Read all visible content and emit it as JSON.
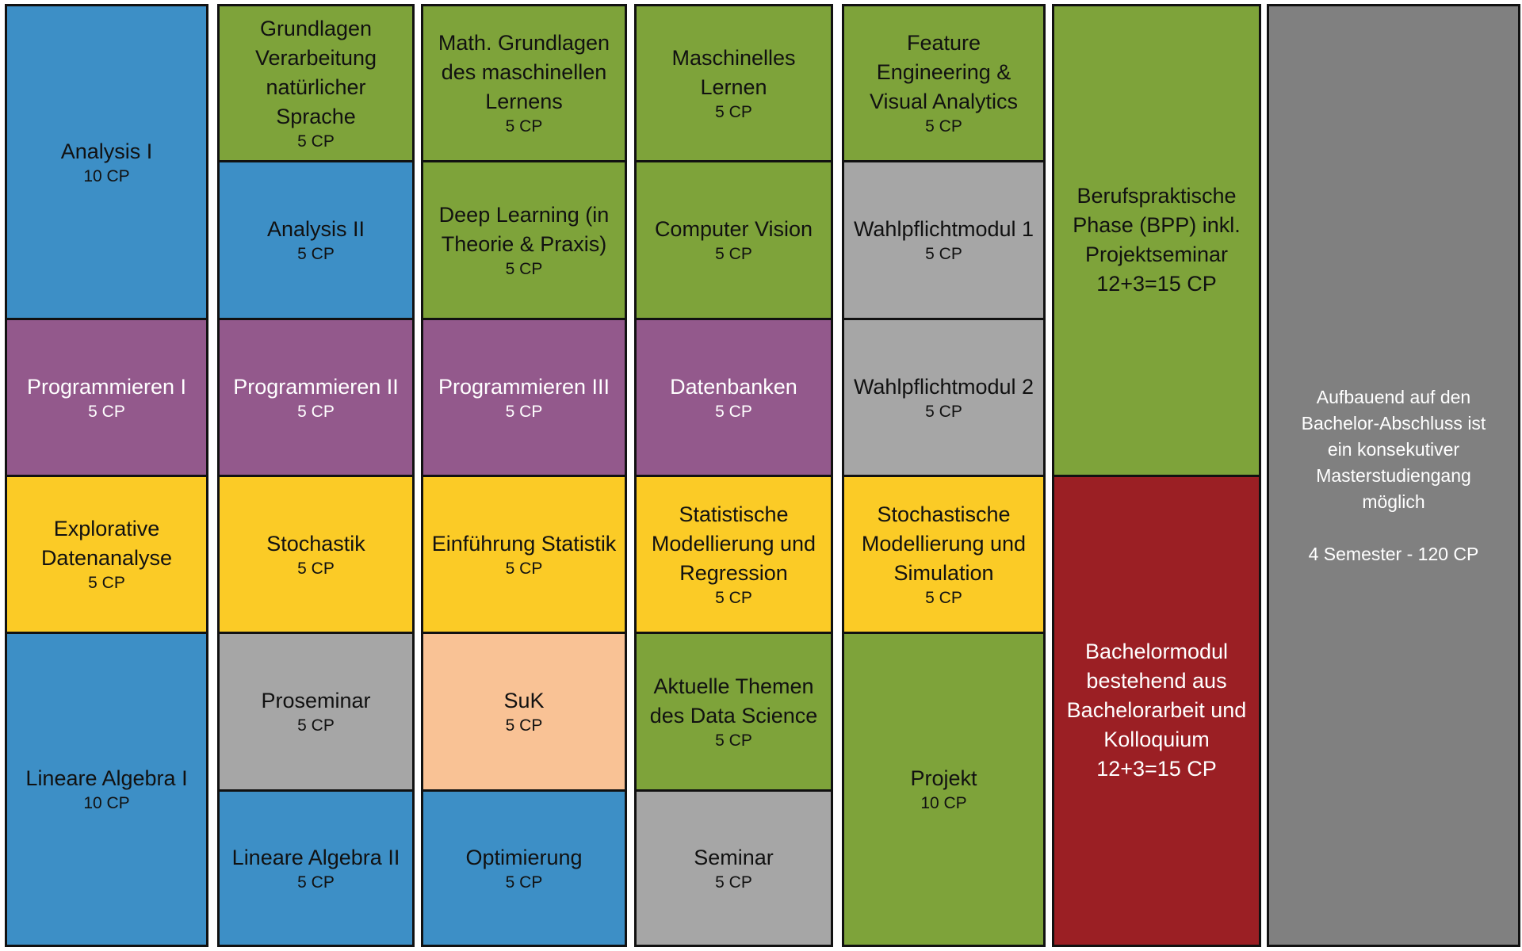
{
  "columns": [
    {
      "modules": [
        {
          "title": "Analysis I",
          "credits": "10 CP",
          "color": "#3d8fc6"
        },
        {
          "title": "Programmieren I",
          "credits": "5 CP",
          "color": "#93598c"
        },
        {
          "title": "Explorative Datenanalyse",
          "credits": "5 CP",
          "color": "#fbcb26"
        },
        {
          "title": "Lineare Algebra I",
          "credits": "10 CP",
          "color": "#3d8fc6"
        }
      ]
    },
    {
      "modules": [
        {
          "title": "Grundlagen Verarbeitung natürlicher Sprache",
          "credits": "5 CP",
          "color": "#7ea33a"
        },
        {
          "title": "Analysis II",
          "credits": "5 CP",
          "color": "#3d8fc6"
        },
        {
          "title": "Programmieren II",
          "credits": "5 CP",
          "color": "#93598c"
        },
        {
          "title": "Stochastik",
          "credits": "5 CP",
          "color": "#fbcb26"
        },
        {
          "title": "Proseminar",
          "credits": "5 CP",
          "color": "#a6a6a6"
        },
        {
          "title": "Lineare Algebra II",
          "credits": "5 CP",
          "color": "#3d8fc6"
        }
      ]
    },
    {
      "modules": [
        {
          "title": "Math. Grundlagen des maschinellen Lernens",
          "credits": "5 CP",
          "color": "#7ea33a"
        },
        {
          "title": "Deep Learning (in Theorie & Praxis)",
          "credits": "5 CP",
          "color": "#7ea33a"
        },
        {
          "title": "Programmieren III",
          "credits": "5 CP",
          "color": "#93598c"
        },
        {
          "title": "Einführung Statistik",
          "credits": "5 CP",
          "color": "#fbcb26"
        },
        {
          "title": "SuK",
          "credits": "5 CP",
          "color": "#f9c295"
        },
        {
          "title": "Optimierung",
          "credits": "5 CP",
          "color": "#3d8fc6"
        }
      ]
    },
    {
      "modules": [
        {
          "title": "Maschinelles Lernen",
          "credits": "5 CP",
          "color": "#7ea33a"
        },
        {
          "title": "Computer Vision",
          "credits": "5 CP",
          "color": "#7ea33a"
        },
        {
          "title": "Datenbanken",
          "credits": "5 CP",
          "color": "#93598c"
        },
        {
          "title": "Statistische Modellierung und Regression",
          "credits": "5 CP",
          "color": "#fbcb26"
        },
        {
          "title": "Aktuelle Themen des Data Science",
          "credits": "5 CP",
          "color": "#7ea33a"
        },
        {
          "title": "Seminar",
          "credits": "5 CP",
          "color": "#a6a6a6"
        }
      ]
    },
    {
      "modules": [
        {
          "title": "Feature Engineering & Visual Analytics",
          "credits": "5 CP",
          "color": "#7ea33a"
        },
        {
          "title": "Wahlpflichtmodul 1",
          "credits": "5 CP",
          "color": "#a6a6a6"
        },
        {
          "title": "Wahlpflichtmodul 2",
          "credits": "5 CP",
          "color": "#a6a6a6"
        },
        {
          "title": "Stochastische Modellierung und Simulation",
          "credits": "5 CP",
          "color": "#fbcb26"
        },
        {
          "title": "Projekt",
          "credits": "10 CP",
          "color": "#7ea33a"
        }
      ]
    },
    {
      "modules": [
        {
          "title": "Berufspraktische Phase (BPP) inkl. Projektseminar",
          "credits": "12+3=15 CP",
          "color": "#7ea33a"
        },
        {
          "title": "Bachelormodul bestehend aus Bachelorarbeit und Kolloquium",
          "credits": "12+3=15 CP",
          "color": "#9b1f24"
        }
      ]
    },
    {
      "modules": [
        {
          "title": "Aufbauend auf den Bachelor-Abschluss ist ein konsekutiver Masterstudiengang möglich",
          "credits": "4 Semester - 120 CP",
          "color": "#808080"
        }
      ]
    }
  ]
}
